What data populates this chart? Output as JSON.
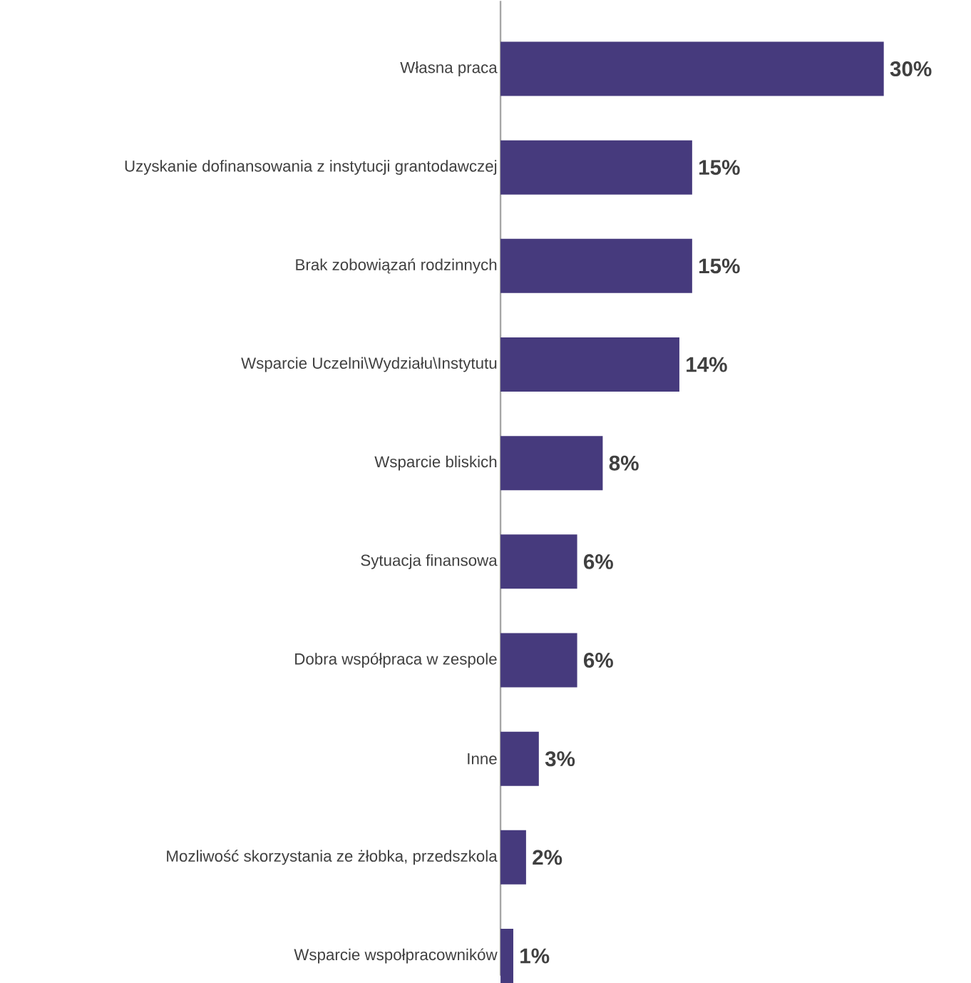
{
  "chart_data": {
    "type": "bar",
    "orientation": "horizontal",
    "categories": [
      "Własna praca",
      "Uzyskanie dofinansowania z instytucji grantodawczej",
      "Brak zobowiązań rodzinnych",
      "Wsparcie Uczelni\\Wydziału\\Instytutu",
      "Wsparcie bliskich",
      "Sytuacja finansowa",
      "Dobra współpraca w zespole",
      "Inne",
      "Mozliwość skorzystania ze żłobka, przedszkola",
      "Wsparcie wspołpracowników"
    ],
    "values": [
      30,
      15,
      15,
      14,
      8,
      6,
      6,
      3,
      2,
      1
    ],
    "value_labels": [
      "30%",
      "15%",
      "15%",
      "14%",
      "8%",
      "6%",
      "6%",
      "3%",
      "2%",
      "1%"
    ],
    "color": "#463a7d"
  }
}
